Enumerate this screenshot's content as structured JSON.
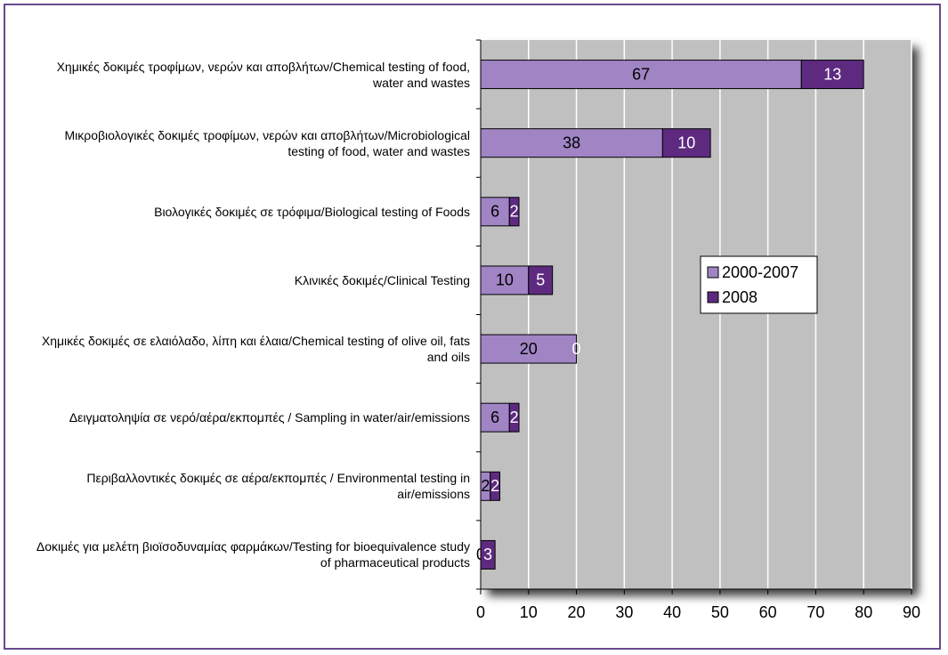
{
  "chart_data": {
    "type": "bar",
    "orientation": "horizontal",
    "stacked": true,
    "categories": [
      "Χημικές δοκιμές τροφίμων, νερών και αποβλήτων/Chemical testing of food, water and wastes",
      "Μικροβιολογικές δοκιμές τροφίμων, νερών και αποβλήτων/Microbiological testing of food, water and wastes",
      "Βιολογικές δοκιμές σε τρόφιμα/Biological testing of Foods",
      "Κλινικές δοκιμές/Clinical Testing",
      "Χημικές δοκιμές σε ελαιόλαδο, λίπη και έλαια/Chemical testing of olive oil, fats and oils",
      "Δειγματοληψία σε νερό/αέρα/εκπομπές / Sampling in water/air/emissions",
      "Περιβαλλοντικές δοκιμές σε αέρα/εκπομπές / Environmental testing in air/emissions",
      "Δοκιμές για μελέτη βιοϊσοδυναμίας φαρμάκων/Testing for bioequivalence study of pharmaceutical products"
    ],
    "series": [
      {
        "name": "2000-2007",
        "color": "#a084c4",
        "values": [
          67,
          38,
          6,
          10,
          20,
          6,
          2,
          0
        ]
      },
      {
        "name": "2008",
        "color": "#5e2a80",
        "values": [
          13,
          10,
          2,
          5,
          0,
          2,
          2,
          3
        ]
      }
    ],
    "xlim": [
      0,
      90
    ],
    "xticks": [
      0,
      10,
      20,
      30,
      40,
      50,
      60,
      70,
      80,
      90
    ],
    "grid": true,
    "legend": "right"
  }
}
